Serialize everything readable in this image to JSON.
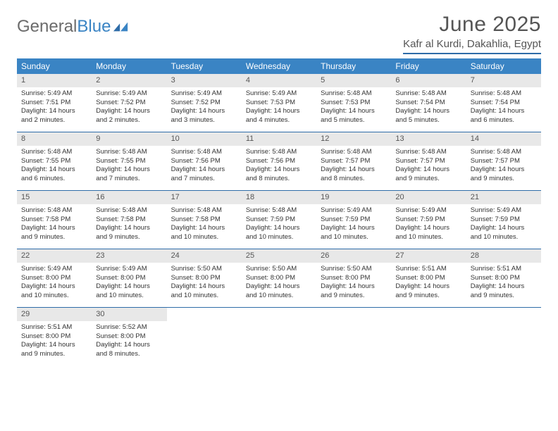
{
  "logo": {
    "word1": "General",
    "word2": "Blue"
  },
  "title": "June 2025",
  "location": "Kafr al Kurdi, Dakahlia, Egypt",
  "colors": {
    "header_bg": "#3a84c4",
    "rule": "#2e6ca8",
    "daynum_bg": "#e8e8e8",
    "text": "#333333",
    "title_text": "#555555"
  },
  "weekdays": [
    "Sunday",
    "Monday",
    "Tuesday",
    "Wednesday",
    "Thursday",
    "Friday",
    "Saturday"
  ],
  "weeks": [
    [
      {
        "n": "1",
        "sr": "Sunrise: 5:49 AM",
        "ss": "Sunset: 7:51 PM",
        "d1": "Daylight: 14 hours",
        "d2": "and 2 minutes."
      },
      {
        "n": "2",
        "sr": "Sunrise: 5:49 AM",
        "ss": "Sunset: 7:52 PM",
        "d1": "Daylight: 14 hours",
        "d2": "and 2 minutes."
      },
      {
        "n": "3",
        "sr": "Sunrise: 5:49 AM",
        "ss": "Sunset: 7:52 PM",
        "d1": "Daylight: 14 hours",
        "d2": "and 3 minutes."
      },
      {
        "n": "4",
        "sr": "Sunrise: 5:49 AM",
        "ss": "Sunset: 7:53 PM",
        "d1": "Daylight: 14 hours",
        "d2": "and 4 minutes."
      },
      {
        "n": "5",
        "sr": "Sunrise: 5:48 AM",
        "ss": "Sunset: 7:53 PM",
        "d1": "Daylight: 14 hours",
        "d2": "and 5 minutes."
      },
      {
        "n": "6",
        "sr": "Sunrise: 5:48 AM",
        "ss": "Sunset: 7:54 PM",
        "d1": "Daylight: 14 hours",
        "d2": "and 5 minutes."
      },
      {
        "n": "7",
        "sr": "Sunrise: 5:48 AM",
        "ss": "Sunset: 7:54 PM",
        "d1": "Daylight: 14 hours",
        "d2": "and 6 minutes."
      }
    ],
    [
      {
        "n": "8",
        "sr": "Sunrise: 5:48 AM",
        "ss": "Sunset: 7:55 PM",
        "d1": "Daylight: 14 hours",
        "d2": "and 6 minutes."
      },
      {
        "n": "9",
        "sr": "Sunrise: 5:48 AM",
        "ss": "Sunset: 7:55 PM",
        "d1": "Daylight: 14 hours",
        "d2": "and 7 minutes."
      },
      {
        "n": "10",
        "sr": "Sunrise: 5:48 AM",
        "ss": "Sunset: 7:56 PM",
        "d1": "Daylight: 14 hours",
        "d2": "and 7 minutes."
      },
      {
        "n": "11",
        "sr": "Sunrise: 5:48 AM",
        "ss": "Sunset: 7:56 PM",
        "d1": "Daylight: 14 hours",
        "d2": "and 8 minutes."
      },
      {
        "n": "12",
        "sr": "Sunrise: 5:48 AM",
        "ss": "Sunset: 7:57 PM",
        "d1": "Daylight: 14 hours",
        "d2": "and 8 minutes."
      },
      {
        "n": "13",
        "sr": "Sunrise: 5:48 AM",
        "ss": "Sunset: 7:57 PM",
        "d1": "Daylight: 14 hours",
        "d2": "and 9 minutes."
      },
      {
        "n": "14",
        "sr": "Sunrise: 5:48 AM",
        "ss": "Sunset: 7:57 PM",
        "d1": "Daylight: 14 hours",
        "d2": "and 9 minutes."
      }
    ],
    [
      {
        "n": "15",
        "sr": "Sunrise: 5:48 AM",
        "ss": "Sunset: 7:58 PM",
        "d1": "Daylight: 14 hours",
        "d2": "and 9 minutes."
      },
      {
        "n": "16",
        "sr": "Sunrise: 5:48 AM",
        "ss": "Sunset: 7:58 PM",
        "d1": "Daylight: 14 hours",
        "d2": "and 9 minutes."
      },
      {
        "n": "17",
        "sr": "Sunrise: 5:48 AM",
        "ss": "Sunset: 7:58 PM",
        "d1": "Daylight: 14 hours",
        "d2": "and 10 minutes."
      },
      {
        "n": "18",
        "sr": "Sunrise: 5:48 AM",
        "ss": "Sunset: 7:59 PM",
        "d1": "Daylight: 14 hours",
        "d2": "and 10 minutes."
      },
      {
        "n": "19",
        "sr": "Sunrise: 5:49 AM",
        "ss": "Sunset: 7:59 PM",
        "d1": "Daylight: 14 hours",
        "d2": "and 10 minutes."
      },
      {
        "n": "20",
        "sr": "Sunrise: 5:49 AM",
        "ss": "Sunset: 7:59 PM",
        "d1": "Daylight: 14 hours",
        "d2": "and 10 minutes."
      },
      {
        "n": "21",
        "sr": "Sunrise: 5:49 AM",
        "ss": "Sunset: 7:59 PM",
        "d1": "Daylight: 14 hours",
        "d2": "and 10 minutes."
      }
    ],
    [
      {
        "n": "22",
        "sr": "Sunrise: 5:49 AM",
        "ss": "Sunset: 8:00 PM",
        "d1": "Daylight: 14 hours",
        "d2": "and 10 minutes."
      },
      {
        "n": "23",
        "sr": "Sunrise: 5:49 AM",
        "ss": "Sunset: 8:00 PM",
        "d1": "Daylight: 14 hours",
        "d2": "and 10 minutes."
      },
      {
        "n": "24",
        "sr": "Sunrise: 5:50 AM",
        "ss": "Sunset: 8:00 PM",
        "d1": "Daylight: 14 hours",
        "d2": "and 10 minutes."
      },
      {
        "n": "25",
        "sr": "Sunrise: 5:50 AM",
        "ss": "Sunset: 8:00 PM",
        "d1": "Daylight: 14 hours",
        "d2": "and 10 minutes."
      },
      {
        "n": "26",
        "sr": "Sunrise: 5:50 AM",
        "ss": "Sunset: 8:00 PM",
        "d1": "Daylight: 14 hours",
        "d2": "and 9 minutes."
      },
      {
        "n": "27",
        "sr": "Sunrise: 5:51 AM",
        "ss": "Sunset: 8:00 PM",
        "d1": "Daylight: 14 hours",
        "d2": "and 9 minutes."
      },
      {
        "n": "28",
        "sr": "Sunrise: 5:51 AM",
        "ss": "Sunset: 8:00 PM",
        "d1": "Daylight: 14 hours",
        "d2": "and 9 minutes."
      }
    ],
    [
      {
        "n": "29",
        "sr": "Sunrise: 5:51 AM",
        "ss": "Sunset: 8:00 PM",
        "d1": "Daylight: 14 hours",
        "d2": "and 9 minutes."
      },
      {
        "n": "30",
        "sr": "Sunrise: 5:52 AM",
        "ss": "Sunset: 8:00 PM",
        "d1": "Daylight: 14 hours",
        "d2": "and 8 minutes."
      },
      null,
      null,
      null,
      null,
      null
    ]
  ]
}
